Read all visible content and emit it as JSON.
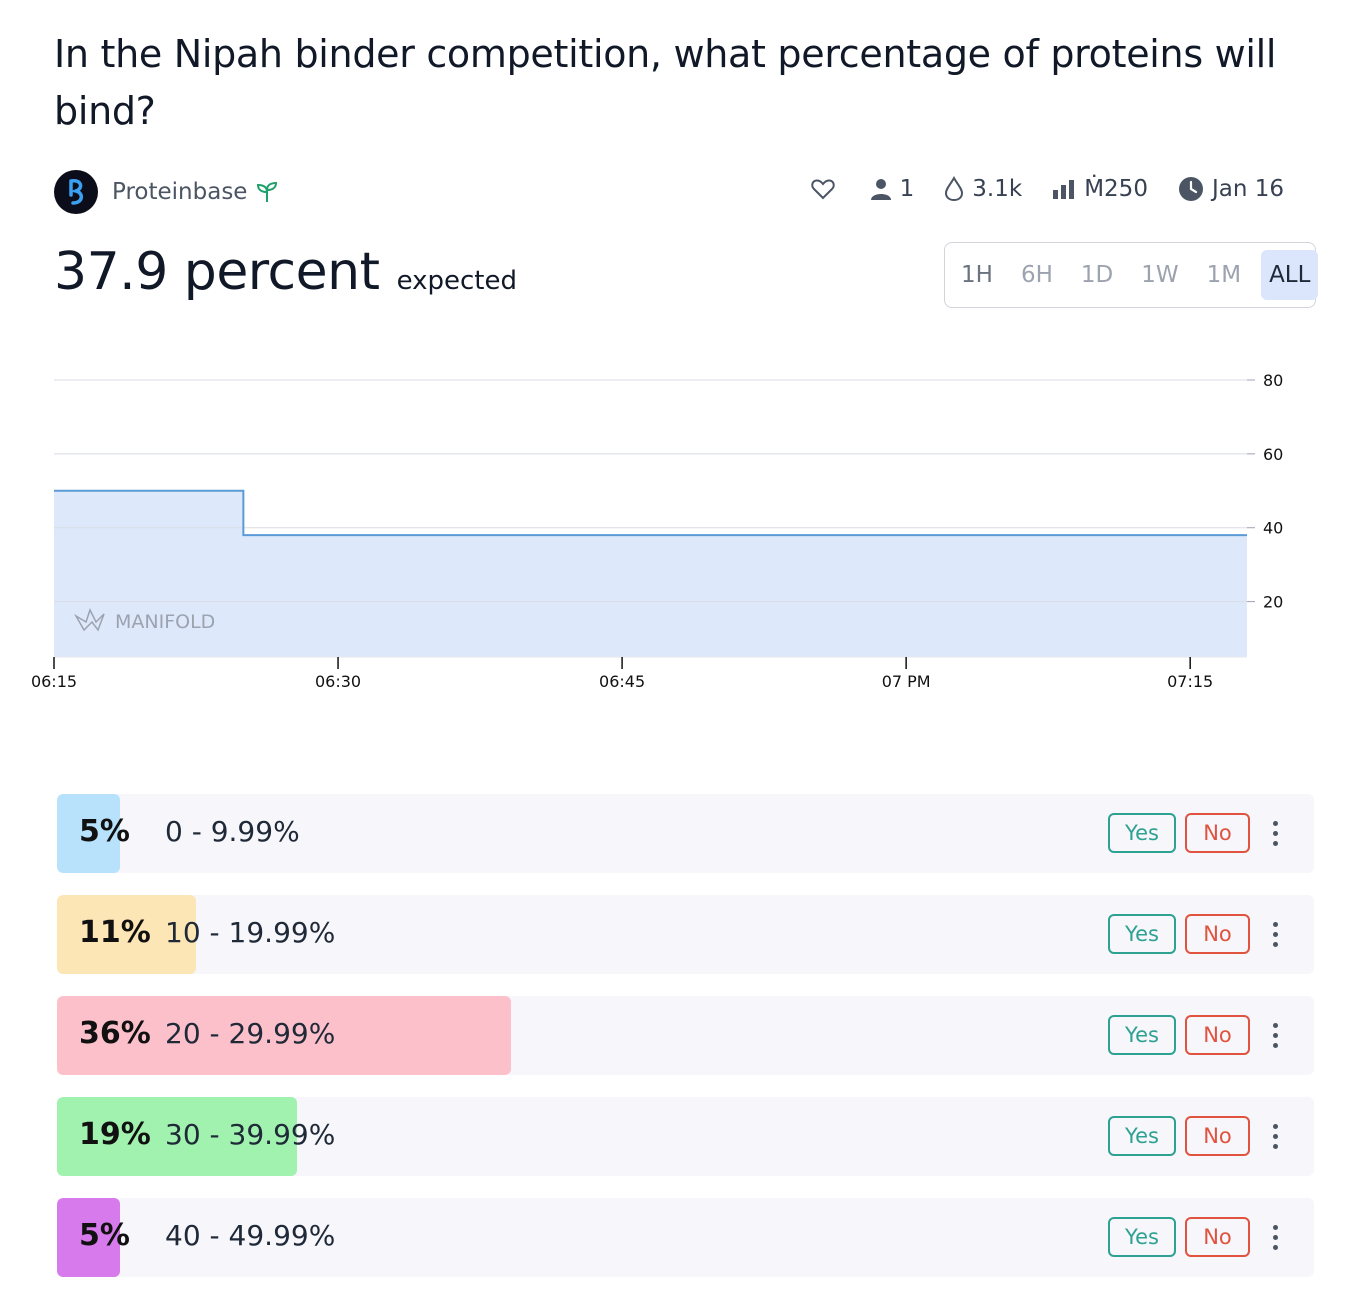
{
  "question": "In the Nipah binder competition, what percentage of proteins will bind?",
  "creator": {
    "name": "Proteinbase",
    "avatar_icon": "proteinbase-logo-icon",
    "badge_icon": "sprout-icon"
  },
  "stats": {
    "likes_icon": "heart-icon",
    "traders": "1",
    "volume": "3.1k",
    "liquidity": "Ṁ250",
    "close_date": "Jan 16"
  },
  "probability": {
    "value": "37.9 percent",
    "suffix": "expected"
  },
  "time_ranges": [
    "1H",
    "6H",
    "1D",
    "1W",
    "1M",
    "ALL"
  ],
  "selected_range": "ALL",
  "watermark": "MANIFOLD",
  "chart_data": {
    "type": "area",
    "x_ticks": [
      "06:15",
      "06:30",
      "06:45",
      "07 PM",
      "07:15"
    ],
    "y_ticks": [
      "20",
      "40",
      "60",
      "80"
    ],
    "ylim": [
      5,
      80
    ],
    "series": [
      {
        "x": [
          "06:15",
          "06:25",
          "06:25",
          "07:18"
        ],
        "y": [
          50,
          50,
          38,
          38
        ]
      }
    ],
    "line_color": "#5b9bd5",
    "fill_color": "#dbe7fb"
  },
  "answers": [
    {
      "pct": "5%",
      "pct_value": 5,
      "label": "0 - 9.99%",
      "color": "#b8e2fb",
      "yes": "Yes",
      "no": "No"
    },
    {
      "pct": "11%",
      "pct_value": 11,
      "label": "10 - 19.99%",
      "color": "#fde6b5",
      "yes": "Yes",
      "no": "No"
    },
    {
      "pct": "36%",
      "pct_value": 36,
      "label": "20 - 29.99%",
      "color": "#fcc0cb",
      "yes": "Yes",
      "no": "No"
    },
    {
      "pct": "19%",
      "pct_value": 19,
      "label": "30 - 39.99%",
      "color": "#a0f2ae",
      "yes": "Yes",
      "no": "No"
    },
    {
      "pct": "5%",
      "pct_value": 5,
      "label": "40 - 49.99%",
      "color": "#d77bec",
      "yes": "Yes",
      "no": "No"
    }
  ]
}
